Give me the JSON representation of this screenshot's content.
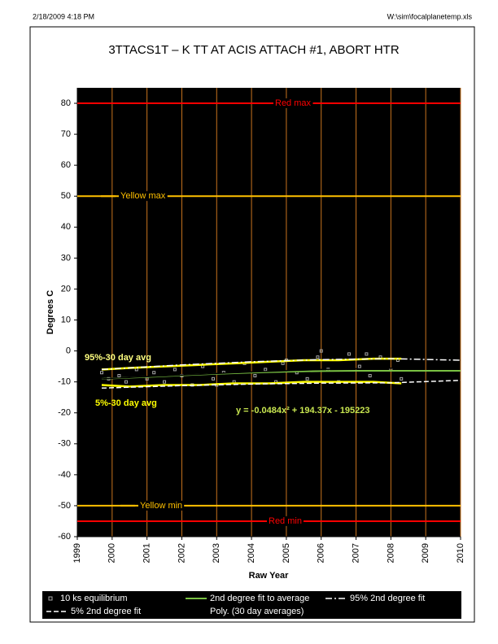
{
  "header": {
    "left": "2/18/2009 4:18 PM",
    "right": "W:\\sim\\focalplanetemp.xls"
  },
  "chart_data": {
    "type": "scatter",
    "title": "3TTACS1T   – K  TT AT ACIS ATTACH #1, ABORT HTR",
    "xlabel": "Raw Year",
    "ylabel": "Degrees C",
    "xlim": [
      1999,
      2010
    ],
    "xticks": [
      1999,
      2000,
      2001,
      2002,
      2003,
      2004,
      2005,
      2006,
      2007,
      2008,
      2009,
      2010
    ],
    "ylim": [
      -60,
      85
    ],
    "yticks": [
      -60,
      -50,
      -40,
      -30,
      -20,
      -10,
      0,
      10,
      20,
      30,
      40,
      50,
      60,
      70,
      80
    ],
    "grid": "x",
    "grid_color": "#c8741e",
    "background": "#000000",
    "limits": [
      {
        "label": "Red max",
        "value": 80,
        "color": "#ff0000"
      },
      {
        "label": "Yellow max",
        "value": 50,
        "color": "#ffc000"
      },
      {
        "label": "Yellow min",
        "value": -50,
        "color": "#ffc000"
      },
      {
        "label": "Red min",
        "value": -55,
        "color": "#ff0000"
      }
    ],
    "series": [
      {
        "name": "10 ks equilibrium",
        "kind": "scatter",
        "color": "#a8a8a8",
        "x": [
          1999.7,
          1999.9,
          2000.2,
          2000.4,
          2000.7,
          2001.0,
          2001.2,
          2001.5,
          2001.8,
          2002.0,
          2002.3,
          2002.6,
          2002.9,
          2003.2,
          2003.5,
          2003.8,
          2004.1,
          2004.4,
          2004.7,
          2005.0,
          2005.3,
          2005.6,
          2005.9,
          2006.2,
          2006.5,
          2006.8,
          2007.1,
          2007.4,
          2007.7,
          2008.0,
          2008.3,
          2006.0,
          2007.3,
          2004.9,
          2003.0,
          2008.2
        ],
        "values": [
          -7,
          -9,
          -8,
          -10,
          -6,
          -9,
          -7,
          -10,
          -6,
          -8,
          -11,
          -5,
          -9,
          -7,
          -10,
          -4,
          -8,
          -6,
          -10,
          -3,
          -7,
          -9,
          -2,
          -6,
          -10,
          -1,
          -5,
          -8,
          -2,
          -6,
          -9,
          0,
          -1,
          -4,
          -11,
          -3
        ]
      },
      {
        "kind": "line",
        "color": "#ffff00",
        "width": 2.5,
        "x": [
          1999.7,
          2000.5,
          2001.5,
          2002.5,
          2003.5,
          2004.5,
          2005.5,
          2006.5,
          2007.5,
          2008.3
        ],
        "values": [
          -6,
          -5.5,
          -5,
          -4.5,
          -4,
          -3.5,
          -3,
          -3,
          -2.5,
          -2.5
        ]
      },
      {
        "kind": "line",
        "color": "#ffff00",
        "width": 2.5,
        "x": [
          1999.7,
          2000.5,
          2001.5,
          2002.5,
          2003.5,
          2004.5,
          2005.5,
          2006.5,
          2007.5,
          2008.3
        ],
        "values": [
          -11,
          -11.5,
          -11,
          -11,
          -10.5,
          -10.5,
          -10,
          -10,
          -10,
          -10.5
        ]
      },
      {
        "name": "2nd degree fit to average",
        "kind": "line",
        "color": "#7ac143",
        "width": 2,
        "x": [
          1999.7,
          2001,
          2002,
          2003,
          2004,
          2005,
          2006,
          2007,
          2008,
          2010
        ],
        "values": [
          -9,
          -8.4,
          -7.9,
          -7.4,
          -7,
          -6.7,
          -6.5,
          -6.4,
          -6.4,
          -6.4
        ]
      },
      {
        "name": "95% 2nd degree fit",
        "kind": "line",
        "color": "#ffffff",
        "width": 1.5,
        "dash": "dashdot",
        "x": [
          1999.7,
          2002,
          2004,
          2006,
          2008,
          2010
        ],
        "values": [
          -6,
          -4.5,
          -3.5,
          -2.8,
          -2.5,
          -3
        ]
      },
      {
        "name": "5% 2nd degree fit",
        "kind": "line",
        "color": "#ffffff",
        "width": 1.5,
        "dash": "dash",
        "x": [
          1999.7,
          2002,
          2004,
          2006,
          2008,
          2010
        ],
        "values": [
          -12,
          -11.2,
          -10.7,
          -10.4,
          -10.3,
          -9.5
        ]
      },
      {
        "name": "Poly. (30 day averages)",
        "kind": "line",
        "color": "#000000",
        "width": 1.5,
        "x": [
          1999.7,
          2002,
          2004,
          2006,
          2008.3
        ],
        "values": [
          -9,
          -7.8,
          -6.8,
          -6,
          -5.5
        ]
      }
    ],
    "annotations": [
      "95%-30 day avg",
      "5%-30 day avg",
      "y = -0.0484x² + 194.37x - 195223"
    ]
  }
}
